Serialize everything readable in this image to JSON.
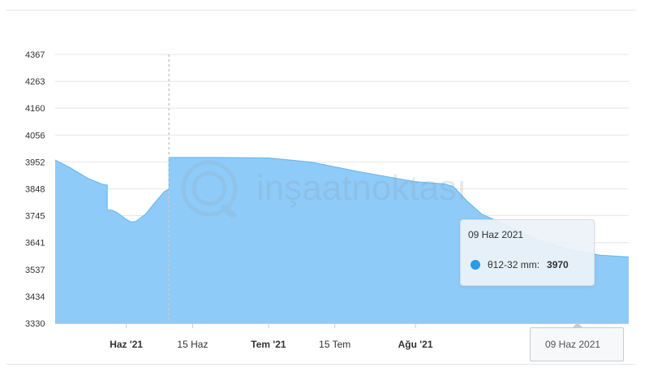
{
  "chart_data": {
    "type": "area",
    "yticks": [
      "4367",
      "4263",
      "4160",
      "4056",
      "3952",
      "3848",
      "3745",
      "3641",
      "3537",
      "3434",
      "3330"
    ],
    "ylim": [
      3330,
      4367
    ],
    "xlim": [
      "2021-05-17",
      "2021-09-15"
    ],
    "xticks": [
      {
        "date": "2021-06-01",
        "label": "Haz '21",
        "major": true
      },
      {
        "date": "2021-06-15",
        "label": "15 Haz",
        "major": false
      },
      {
        "date": "2021-07-01",
        "label": "Tem '21",
        "major": true
      },
      {
        "date": "2021-07-15",
        "label": "15 Tem",
        "major": false
      },
      {
        "date": "2021-08-01",
        "label": "Ağu '21",
        "major": true
      }
    ],
    "series": [
      {
        "name": "θ12-32 mm",
        "color": "#8ecbf9",
        "line_color": "#2a9be6",
        "points": [
          {
            "x": "2021-05-17",
            "y": 3960
          },
          {
            "x": "2021-05-20",
            "y": 3932
          },
          {
            "x": "2021-05-24",
            "y": 3888
          },
          {
            "x": "2021-05-27",
            "y": 3866
          },
          {
            "x": "2021-05-27",
            "y": 3866
          },
          {
            "x": "2021-05-28",
            "y": 3863
          },
          {
            "x": "2021-05-28",
            "y": 3768
          },
          {
            "x": "2021-05-29",
            "y": 3766
          },
          {
            "x": "2021-05-30",
            "y": 3758
          },
          {
            "x": "2021-06-01",
            "y": 3731
          },
          {
            "x": "2021-06-02",
            "y": 3721
          },
          {
            "x": "2021-06-03",
            "y": 3723
          },
          {
            "x": "2021-06-05",
            "y": 3750
          },
          {
            "x": "2021-06-07",
            "y": 3795
          },
          {
            "x": "2021-06-09",
            "y": 3838
          },
          {
            "x": "2021-06-10",
            "y": 3848
          },
          {
            "x": "2021-06-10",
            "y": 3970
          },
          {
            "x": "2021-06-20",
            "y": 3970
          },
          {
            "x": "2021-07-01",
            "y": 3968
          },
          {
            "x": "2021-07-10",
            "y": 3952
          },
          {
            "x": "2021-07-20",
            "y": 3915
          },
          {
            "x": "2021-08-01",
            "y": 3876
          },
          {
            "x": "2021-08-07",
            "y": 3868
          },
          {
            "x": "2021-08-09",
            "y": 3858
          },
          {
            "x": "2021-08-12",
            "y": 3800
          },
          {
            "x": "2021-08-15",
            "y": 3751
          },
          {
            "x": "2021-08-20",
            "y": 3710
          },
          {
            "x": "2021-08-27",
            "y": 3650
          },
          {
            "x": "2021-09-03",
            "y": 3612
          },
          {
            "x": "2021-09-09",
            "y": 3593
          },
          {
            "x": "2021-09-15",
            "y": 3586
          }
        ]
      }
    ],
    "crosshair_date": "2021-06-10",
    "grid": true,
    "legend": "none"
  },
  "tooltip": {
    "date": "09 Haz 2021",
    "label": "θ12-32 mm:",
    "value": "3970"
  },
  "crosshair_label": "09 Haz 2021",
  "watermark": "inşaatnoktası"
}
